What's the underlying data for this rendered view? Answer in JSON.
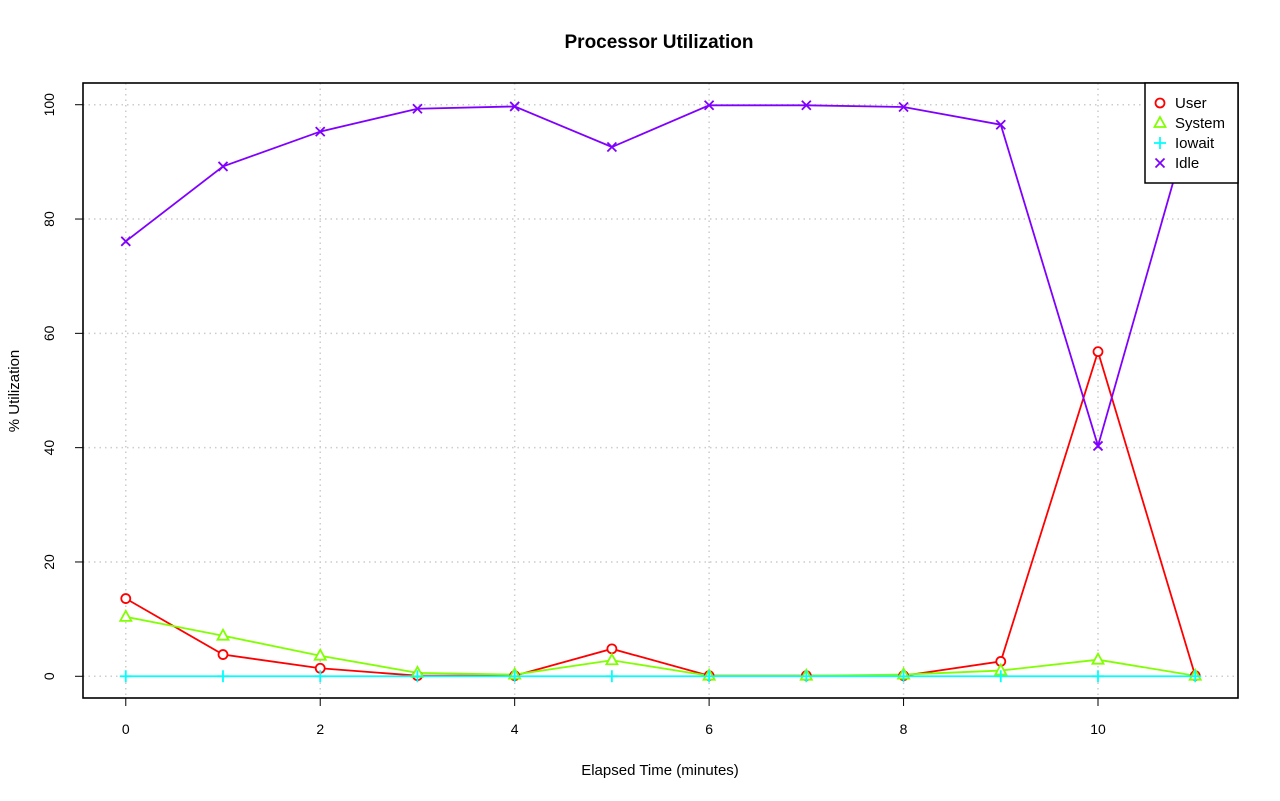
{
  "chart_data": {
    "type": "line",
    "title": "Processor Utilization",
    "xlabel": "Elapsed Time (minutes)",
    "ylabel": "% Utilization",
    "x": [
      0,
      1,
      2,
      3,
      4,
      5,
      6,
      7,
      8,
      9,
      10,
      11
    ],
    "xlim": [
      -0.44,
      11.44
    ],
    "ylim": [
      -3.8,
      103.8
    ],
    "xticks": [
      0,
      2,
      4,
      6,
      8,
      10
    ],
    "xtick_labels": [
      "0",
      "2",
      "4",
      "6",
      "8",
      "10"
    ],
    "yticks": [
      0,
      20,
      40,
      60,
      80,
      100
    ],
    "ytick_labels": [
      "0",
      "20",
      "40",
      "60",
      "80",
      "100"
    ],
    "grid": true,
    "legend_position": "top-right",
    "series": [
      {
        "name": "User",
        "color": "#ff0000",
        "marker": "circle",
        "values": [
          13.6,
          3.8,
          1.4,
          0.1,
          0.1,
          4.8,
          0.1,
          0.1,
          0.1,
          2.6,
          56.8,
          0.1
        ]
      },
      {
        "name": "System",
        "color": "#80ff00",
        "marker": "triangle",
        "values": [
          10.4,
          7.1,
          3.6,
          0.6,
          0.3,
          2.8,
          0.1,
          0.1,
          0.3,
          1.0,
          2.9,
          0.1
        ]
      },
      {
        "name": "Iowait",
        "color": "#00ffff",
        "marker": "plus",
        "values": [
          0,
          0,
          0,
          0,
          0,
          0,
          0,
          0,
          0,
          0,
          0,
          0
        ]
      },
      {
        "name": "Idle",
        "color": "#8000ff",
        "marker": "cross",
        "values": [
          76.1,
          89.2,
          95.3,
          99.3,
          99.7,
          92.6,
          99.9,
          99.9,
          99.6,
          96.5,
          40.3,
          100.0
        ]
      }
    ]
  }
}
